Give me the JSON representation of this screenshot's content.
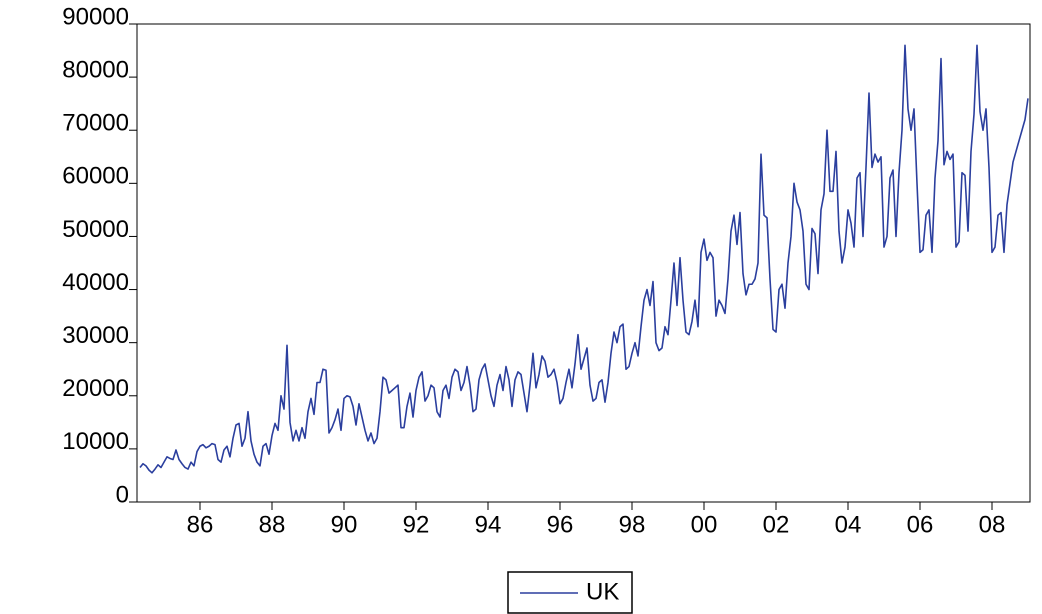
{
  "chart_data": {
    "type": "line",
    "categories": [
      null,
      null,
      null,
      null,
      null,
      null,
      null,
      null,
      null,
      null,
      null,
      null,
      null,
      null,
      null,
      null,
      null,
      null,
      null,
      null,
      "86",
      null,
      null,
      null,
      null,
      null,
      null,
      null,
      null,
      null,
      null,
      null,
      null,
      null,
      null,
      null,
      null,
      null,
      null,
      null,
      null,
      null,
      null,
      null,
      "88",
      null,
      null,
      null,
      null,
      null,
      null,
      null,
      null,
      null,
      null,
      null,
      null,
      null,
      null,
      null,
      null,
      null,
      null,
      null,
      null,
      null,
      null,
      null,
      "90",
      null,
      null,
      null,
      null,
      null,
      null,
      null,
      null,
      null,
      null,
      null,
      null,
      null,
      null,
      null,
      null,
      null,
      null,
      null,
      null,
      null,
      null,
      null,
      "92",
      null,
      null,
      null,
      null,
      null,
      null,
      null,
      null,
      null,
      null,
      null,
      null,
      null,
      null,
      null,
      null,
      null,
      null,
      null,
      null,
      null,
      null,
      null,
      "94",
      null,
      null,
      null,
      null,
      null,
      null,
      null,
      null,
      null,
      null,
      null,
      null,
      null,
      null,
      null,
      null,
      null,
      null,
      null,
      null,
      null,
      null,
      null,
      "96",
      null,
      null,
      null,
      null,
      null,
      null,
      null,
      null,
      null,
      null,
      null,
      null,
      null,
      null,
      null,
      null,
      null,
      null,
      null,
      null,
      null,
      null,
      null,
      "98",
      null,
      null,
      null,
      null,
      null,
      null,
      null,
      null,
      null,
      null,
      null,
      null,
      null,
      null,
      null,
      null,
      null,
      null,
      null,
      null,
      null,
      null,
      null,
      "00",
      null,
      null,
      null,
      null,
      null,
      null,
      null,
      null,
      null,
      null,
      null,
      null,
      null,
      null,
      null,
      null,
      null,
      null,
      null,
      null,
      null,
      null,
      null,
      "02",
      null,
      null,
      null,
      null,
      null,
      null,
      null,
      null,
      null,
      null,
      null,
      null,
      null,
      null,
      null,
      null,
      null,
      null,
      null,
      null,
      null,
      null,
      null,
      "04",
      null,
      null,
      null,
      null,
      null,
      null,
      null,
      null,
      null,
      null,
      null,
      null,
      null,
      null,
      null,
      null,
      null,
      null,
      null,
      null,
      null,
      null,
      null,
      "06",
      null,
      null,
      null,
      null,
      null,
      null,
      null,
      null,
      null,
      null,
      null,
      null,
      null,
      null,
      null,
      null,
      null,
      null,
      null,
      null,
      null,
      null,
      null,
      "08",
      null,
      null,
      null,
      null,
      null,
      null,
      null,
      null,
      null,
      null,
      null,
      null
    ],
    "series": [
      {
        "name": "UK",
        "color": "#2b3f9e",
        "values": [
          6500,
          7200,
          6800,
          6000,
          5500,
          6200,
          7000,
          6500,
          7500,
          8500,
          8200,
          8000,
          9800,
          8000,
          7200,
          6500,
          6200,
          7500,
          6800,
          9500,
          10500,
          10800,
          10200,
          10500,
          11000,
          10800,
          8000,
          7500,
          9800,
          10500,
          8500,
          12000,
          14500,
          14800,
          10500,
          12000,
          17000,
          11500,
          9000,
          7500,
          6800,
          10500,
          11000,
          9000,
          12500,
          14800,
          13500,
          20000,
          17500,
          29500,
          15000,
          11500,
          13500,
          11500,
          14000,
          12000,
          17000,
          19500,
          16500,
          22500,
          22500,
          25000,
          24800,
          13000,
          14000,
          15500,
          17500,
          13500,
          19500,
          20000,
          19800,
          18000,
          14500,
          18500,
          16000,
          13500,
          11500,
          13000,
          11000,
          12000,
          17000,
          23500,
          23000,
          20500,
          21000,
          21500,
          22000,
          14000,
          14000,
          18000,
          20500,
          16000,
          21000,
          23500,
          24500,
          19000,
          20000,
          22000,
          21500,
          17000,
          16000,
          21000,
          22000,
          19500,
          23500,
          25000,
          24500,
          21000,
          22500,
          25500,
          22000,
          17000,
          17500,
          23000,
          25000,
          26000,
          23000,
          20000,
          18000,
          22000,
          24000,
          21000,
          25500,
          23000,
          18000,
          23000,
          24500,
          24000,
          20500,
          17000,
          22000,
          28000,
          21500,
          24000,
          27500,
          26500,
          23500,
          24000,
          25000,
          22500,
          18500,
          19500,
          22500,
          25000,
          21500,
          26000,
          31500,
          25000,
          27000,
          29000,
          22000,
          19000,
          19500,
          22500,
          23000,
          18800,
          22500,
          28000,
          32000,
          30000,
          33000,
          33500,
          25000,
          25500,
          28000,
          30000,
          27500,
          33000,
          38000,
          40000,
          37000,
          41500,
          30000,
          28500,
          29000,
          33000,
          31500,
          38000,
          45000,
          37000,
          46000,
          38000,
          32000,
          31500,
          34000,
          38000,
          33000,
          47000,
          49500,
          45500,
          47000,
          46000,
          35000,
          38000,
          37000,
          35500,
          42000,
          51000,
          54000,
          48500,
          54500,
          43000,
          39000,
          41000,
          41000,
          42000,
          45000,
          65500,
          54000,
          53500,
          42000,
          32500,
          32000,
          40000,
          41000,
          36500,
          45000,
          50000,
          60000,
          56500,
          55000,
          51000,
          41000,
          40000,
          51500,
          50500,
          43000,
          55000,
          58000,
          70000,
          58500,
          58500,
          66000,
          51000,
          45000,
          48000,
          55000,
          52500,
          48000,
          61000,
          62000,
          50000,
          63000,
          77000,
          63000,
          65500,
          64000,
          65000,
          48000,
          50000,
          61000,
          62500,
          50000,
          62000,
          70000,
          86000,
          74000,
          70000,
          74000,
          60000,
          47000,
          47500,
          54000,
          55000,
          47000,
          61000,
          68000,
          83500,
          63500,
          66000,
          64500,
          65500,
          48000,
          49000,
          62000,
          61500,
          51000,
          66000,
          73000,
          86000,
          73500,
          70000,
          74000,
          63000,
          47000,
          48000,
          54000,
          54500,
          47000,
          56000,
          60000,
          64000,
          66000,
          68000,
          70000,
          72000,
          76000
        ]
      }
    ],
    "ylim": [
      0,
      90000
    ],
    "yticks": [
      0,
      10000,
      20000,
      30000,
      40000,
      50000,
      60000,
      70000,
      80000,
      90000
    ]
  }
}
